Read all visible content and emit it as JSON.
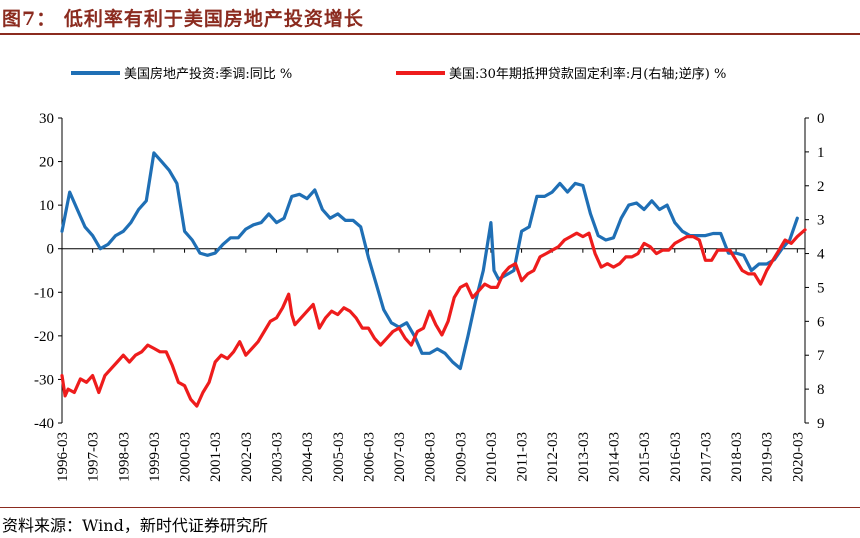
{
  "header": {
    "title": "图7：  低利率有利于美国房地产投资增长"
  },
  "footer": {
    "source": "资料来源：Wind，新时代证券研究所"
  },
  "colors": {
    "investment": "#1f6fb5",
    "mortgage": "#ee1c1c",
    "title": "#8b2b1f"
  },
  "chart_data": {
    "type": "line",
    "title": "",
    "x_tick_labels": [
      "1996-03",
      "1997-03",
      "1998-03",
      "1999-03",
      "2000-03",
      "2001-03",
      "2002-03",
      "2003-03",
      "2004-03",
      "2005-03",
      "2006-03",
      "2007-03",
      "2008-03",
      "2009-03",
      "2010-03",
      "2011-03",
      "2012-03",
      "2013-03",
      "2014-03",
      "2015-03",
      "2016-03",
      "2017-03",
      "2018-03",
      "2019-03",
      "2020-03"
    ],
    "x_range": [
      1996.0,
      2020.25
    ],
    "left_axis": {
      "min": -40,
      "max": 30,
      "ticks": [
        30,
        20,
        10,
        0,
        -10,
        -20,
        -30,
        -40
      ]
    },
    "right_axis": {
      "min": 0,
      "max": 9,
      "inverted": true,
      "ticks": [
        0,
        1,
        2,
        3,
        4,
        5,
        6,
        7,
        8,
        9
      ]
    },
    "legend_position": "top",
    "series": [
      {
        "name": "美国房地产投资:季调:同比 %",
        "axis": "left",
        "points": [
          [
            1996.0,
            4
          ],
          [
            1996.25,
            13
          ],
          [
            1996.5,
            9
          ],
          [
            1996.75,
            5
          ],
          [
            1997.0,
            3
          ],
          [
            1997.25,
            0
          ],
          [
            1997.5,
            1
          ],
          [
            1997.75,
            3
          ],
          [
            1998.0,
            4
          ],
          [
            1998.25,
            6
          ],
          [
            1998.5,
            9
          ],
          [
            1998.75,
            11
          ],
          [
            1999.0,
            22
          ],
          [
            1999.25,
            20
          ],
          [
            1999.5,
            18
          ],
          [
            1999.75,
            15
          ],
          [
            2000.0,
            4
          ],
          [
            2000.25,
            2
          ],
          [
            2000.5,
            -1
          ],
          [
            2000.75,
            -1.5
          ],
          [
            2001.0,
            -1
          ],
          [
            2001.25,
            1
          ],
          [
            2001.5,
            2.5
          ],
          [
            2001.75,
            2.5
          ],
          [
            2002.0,
            4.5
          ],
          [
            2002.25,
            5.5
          ],
          [
            2002.5,
            6
          ],
          [
            2002.75,
            8
          ],
          [
            2003.0,
            6
          ],
          [
            2003.25,
            7
          ],
          [
            2003.5,
            12
          ],
          [
            2003.75,
            12.5
          ],
          [
            2004.0,
            11.5
          ],
          [
            2004.25,
            13.5
          ],
          [
            2004.5,
            9
          ],
          [
            2004.75,
            7
          ],
          [
            2005.0,
            8
          ],
          [
            2005.25,
            6.5
          ],
          [
            2005.5,
            6.5
          ],
          [
            2005.75,
            5
          ],
          [
            2006.0,
            -2
          ],
          [
            2006.25,
            -8
          ],
          [
            2006.5,
            -14
          ],
          [
            2006.75,
            -17
          ],
          [
            2007.0,
            -18
          ],
          [
            2007.25,
            -17
          ],
          [
            2007.5,
            -20
          ],
          [
            2007.75,
            -24
          ],
          [
            2008.0,
            -24
          ],
          [
            2008.25,
            -23
          ],
          [
            2008.5,
            -24
          ],
          [
            2008.75,
            -26
          ],
          [
            2009.0,
            -27.5
          ],
          [
            2009.25,
            -20
          ],
          [
            2009.5,
            -12
          ],
          [
            2009.75,
            -5
          ],
          [
            2010.0,
            6
          ],
          [
            2010.1,
            -5
          ],
          [
            2010.25,
            -7
          ],
          [
            2010.5,
            -6
          ],
          [
            2010.75,
            -5
          ],
          [
            2011.0,
            4
          ],
          [
            2011.25,
            5
          ],
          [
            2011.5,
            12
          ],
          [
            2011.75,
            12
          ],
          [
            2012.0,
            13
          ],
          [
            2012.25,
            15
          ],
          [
            2012.5,
            13
          ],
          [
            2012.75,
            15
          ],
          [
            2013.0,
            14.5
          ],
          [
            2013.25,
            8
          ],
          [
            2013.5,
            3
          ],
          [
            2013.75,
            2
          ],
          [
            2014.0,
            2.5
          ],
          [
            2014.25,
            7
          ],
          [
            2014.5,
            10
          ],
          [
            2014.75,
            10.5
          ],
          [
            2015.0,
            9
          ],
          [
            2015.25,
            11
          ],
          [
            2015.5,
            9
          ],
          [
            2015.75,
            10
          ],
          [
            2016.0,
            6
          ],
          [
            2016.25,
            4
          ],
          [
            2016.5,
            3
          ],
          [
            2016.75,
            3
          ],
          [
            2017.0,
            3
          ],
          [
            2017.25,
            3.5
          ],
          [
            2017.5,
            3.5
          ],
          [
            2017.75,
            -1
          ],
          [
            2018.0,
            -1
          ],
          [
            2018.25,
            -1.5
          ],
          [
            2018.5,
            -5
          ],
          [
            2018.75,
            -3.5
          ],
          [
            2019.0,
            -3.5
          ],
          [
            2019.25,
            -2.5
          ],
          [
            2019.5,
            0
          ],
          [
            2019.75,
            2
          ],
          [
            2020.0,
            7
          ]
        ]
      },
      {
        "name": "美国:30年期抵押贷款固定利率:月(右轴;逆序) %",
        "axis": "right",
        "points": [
          [
            1996.0,
            7.6
          ],
          [
            1996.1,
            8.2
          ],
          [
            1996.2,
            8.0
          ],
          [
            1996.4,
            8.1
          ],
          [
            1996.6,
            7.7
          ],
          [
            1996.8,
            7.8
          ],
          [
            1997.0,
            7.6
          ],
          [
            1997.2,
            8.1
          ],
          [
            1997.4,
            7.6
          ],
          [
            1997.6,
            7.4
          ],
          [
            1997.8,
            7.2
          ],
          [
            1998.0,
            7.0
          ],
          [
            1998.2,
            7.2
          ],
          [
            1998.4,
            7.0
          ],
          [
            1998.6,
            6.9
          ],
          [
            1998.8,
            6.7
          ],
          [
            1999.0,
            6.8
          ],
          [
            1999.2,
            6.9
          ],
          [
            1999.4,
            6.9
          ],
          [
            1999.6,
            7.3
          ],
          [
            1999.8,
            7.8
          ],
          [
            2000.0,
            7.9
          ],
          [
            2000.2,
            8.3
          ],
          [
            2000.4,
            8.5
          ],
          [
            2000.6,
            8.1
          ],
          [
            2000.8,
            7.8
          ],
          [
            2001.0,
            7.2
          ],
          [
            2001.2,
            7.0
          ],
          [
            2001.4,
            7.1
          ],
          [
            2001.6,
            6.9
          ],
          [
            2001.8,
            6.6
          ],
          [
            2002.0,
            7.0
          ],
          [
            2002.2,
            6.8
          ],
          [
            2002.4,
            6.6
          ],
          [
            2002.6,
            6.3
          ],
          [
            2002.8,
            6.0
          ],
          [
            2003.0,
            5.9
          ],
          [
            2003.2,
            5.6
          ],
          [
            2003.4,
            5.2
          ],
          [
            2003.5,
            5.8
          ],
          [
            2003.6,
            6.1
          ],
          [
            2003.8,
            5.9
          ],
          [
            2004.0,
            5.7
          ],
          [
            2004.2,
            5.5
          ],
          [
            2004.4,
            6.2
          ],
          [
            2004.6,
            5.9
          ],
          [
            2004.8,
            5.7
          ],
          [
            2005.0,
            5.8
          ],
          [
            2005.2,
            5.6
          ],
          [
            2005.4,
            5.7
          ],
          [
            2005.6,
            5.9
          ],
          [
            2005.8,
            6.2
          ],
          [
            2006.0,
            6.2
          ],
          [
            2006.2,
            6.5
          ],
          [
            2006.4,
            6.7
          ],
          [
            2006.6,
            6.5
          ],
          [
            2006.8,
            6.3
          ],
          [
            2007.0,
            6.2
          ],
          [
            2007.2,
            6.5
          ],
          [
            2007.4,
            6.7
          ],
          [
            2007.6,
            6.3
          ],
          [
            2007.8,
            6.2
          ],
          [
            2008.0,
            5.7
          ],
          [
            2008.2,
            6.1
          ],
          [
            2008.4,
            6.4
          ],
          [
            2008.6,
            6.0
          ],
          [
            2008.8,
            5.3
          ],
          [
            2009.0,
            5.0
          ],
          [
            2009.2,
            4.9
          ],
          [
            2009.4,
            5.3
          ],
          [
            2009.6,
            5.1
          ],
          [
            2009.8,
            4.9
          ],
          [
            2010.0,
            5.0
          ],
          [
            2010.2,
            5.0
          ],
          [
            2010.4,
            4.6
          ],
          [
            2010.6,
            4.4
          ],
          [
            2010.8,
            4.3
          ],
          [
            2011.0,
            4.8
          ],
          [
            2011.2,
            4.6
          ],
          [
            2011.4,
            4.5
          ],
          [
            2011.6,
            4.1
          ],
          [
            2011.8,
            4.0
          ],
          [
            2012.0,
            3.9
          ],
          [
            2012.2,
            3.8
          ],
          [
            2012.4,
            3.6
          ],
          [
            2012.6,
            3.5
          ],
          [
            2012.8,
            3.4
          ],
          [
            2013.0,
            3.5
          ],
          [
            2013.2,
            3.4
          ],
          [
            2013.4,
            4.0
          ],
          [
            2013.6,
            4.4
          ],
          [
            2013.8,
            4.3
          ],
          [
            2014.0,
            4.4
          ],
          [
            2014.2,
            4.3
          ],
          [
            2014.4,
            4.1
          ],
          [
            2014.6,
            4.1
          ],
          [
            2014.8,
            4.0
          ],
          [
            2015.0,
            3.7
          ],
          [
            2015.2,
            3.8
          ],
          [
            2015.4,
            4.0
          ],
          [
            2015.6,
            3.9
          ],
          [
            2015.8,
            3.9
          ],
          [
            2016.0,
            3.7
          ],
          [
            2016.2,
            3.6
          ],
          [
            2016.4,
            3.5
          ],
          [
            2016.6,
            3.5
          ],
          [
            2016.8,
            3.6
          ],
          [
            2017.0,
            4.2
          ],
          [
            2017.2,
            4.2
          ],
          [
            2017.4,
            3.9
          ],
          [
            2017.6,
            3.9
          ],
          [
            2017.8,
            3.9
          ],
          [
            2018.0,
            4.2
          ],
          [
            2018.2,
            4.5
          ],
          [
            2018.4,
            4.6
          ],
          [
            2018.6,
            4.6
          ],
          [
            2018.8,
            4.9
          ],
          [
            2019.0,
            4.5
          ],
          [
            2019.2,
            4.2
          ],
          [
            2019.4,
            3.9
          ],
          [
            2019.6,
            3.6
          ],
          [
            2019.8,
            3.7
          ],
          [
            2020.0,
            3.5
          ],
          [
            2020.25,
            3.3
          ]
        ]
      }
    ]
  }
}
